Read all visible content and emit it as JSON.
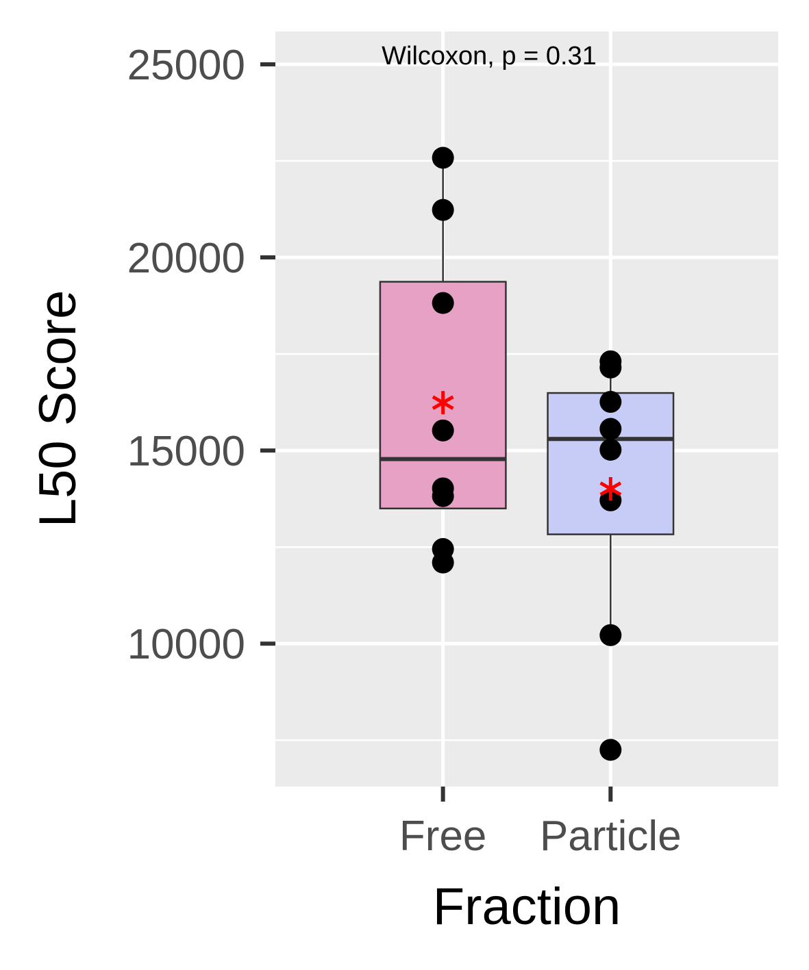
{
  "chart_data": {
    "type": "box",
    "xlabel": "Fraction",
    "ylabel": "L50 Score",
    "annotation": "Wilcoxon, p = 0.31",
    "categories": [
      "Free",
      "Particle"
    ],
    "y_ticks": [
      10000,
      15000,
      20000,
      25000
    ],
    "ylim": [
      6300,
      25850
    ],
    "grid": true,
    "boxes": [
      {
        "category": "Free",
        "fill": "#e6a1c5",
        "whisker_low": 13500,
        "q1": 13500,
        "median": 14780,
        "q3": 19370,
        "whisker_high": 22580,
        "mean": 16240,
        "points": [
          22580,
          21230,
          18820,
          15520,
          14020,
          13820,
          12450,
          12100
        ]
      },
      {
        "category": "Particle",
        "fill": "#c6ccf5",
        "whisker_low": 10220,
        "q1": 12830,
        "median": 15300,
        "q3": 16490,
        "whisker_high": 17150,
        "mean": 14010,
        "points": [
          17310,
          17150,
          16260,
          15560,
          15020,
          13710,
          10220,
          7250
        ]
      }
    ],
    "colors": {
      "panel_bg": "#ebebeb",
      "grid": "#ffffff",
      "point": "#000000",
      "mean_marker": "#ff0000",
      "box_line": "#333333"
    }
  }
}
